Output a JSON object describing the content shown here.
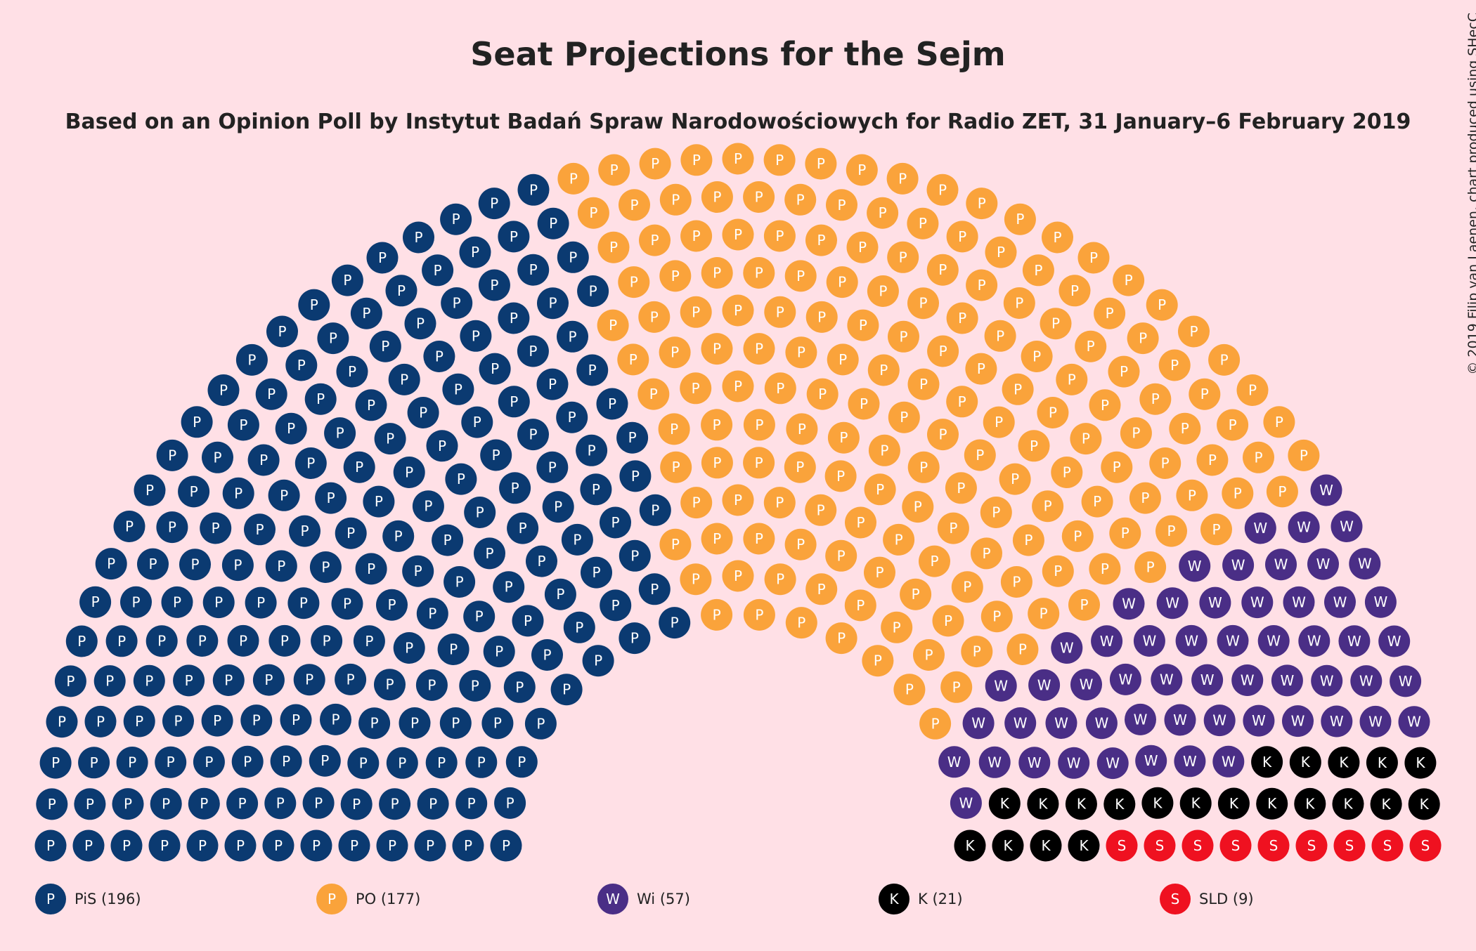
{
  "title": "Seat Projections for the Sejm",
  "subtitle": "Based on an Opinion Poll by Instytut Badań Spraw Narodowościowych for Radio ZET, 31 January–6 February 2019",
  "credit": "© 2019 Filip van Laenen, chart produced using SHecC",
  "chart_data": {
    "type": "parliament",
    "total_seats": 460,
    "series": [
      {
        "name": "PiS",
        "seats": 196,
        "letter": "P",
        "color": "#0b3a71",
        "legend": "PiS (196)"
      },
      {
        "name": "PO",
        "seats": 177,
        "letter": "P",
        "color": "#faa33b",
        "legend": "PO (177)"
      },
      {
        "name": "Wi",
        "seats": 57,
        "letter": "W",
        "color": "#4a2e86",
        "legend": "Wi (57)"
      },
      {
        "name": "K",
        "seats": 21,
        "letter": "K",
        "color": "#000000",
        "legend": "K (21)"
      },
      {
        "name": "SLD",
        "seats": 9,
        "letter": "S",
        "color": "#ef1120",
        "legend": "SLD (9)"
      }
    ]
  }
}
